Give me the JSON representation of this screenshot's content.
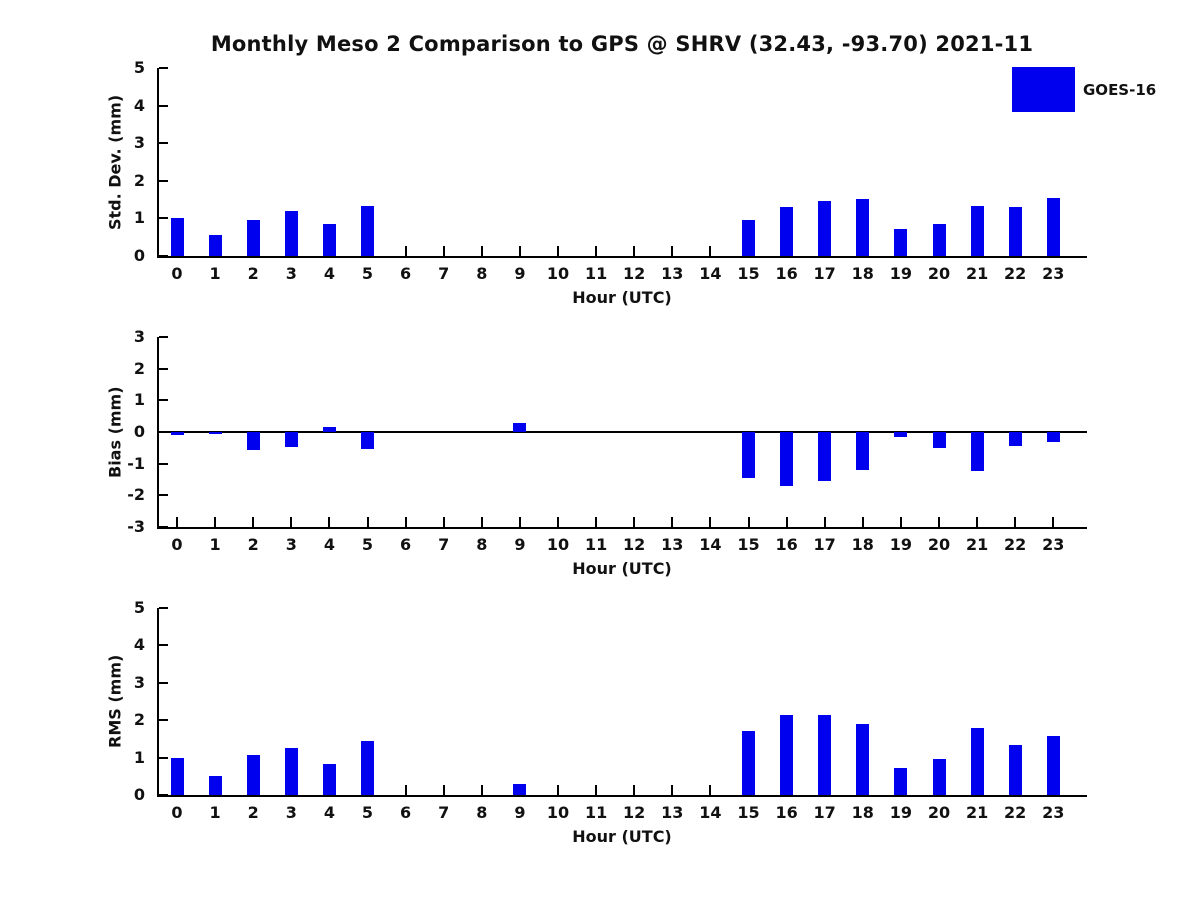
{
  "title": "Monthly Meso 2 Comparison to GPS @ SHRV (32.43, -93.70) 2021-11",
  "legend": {
    "label": "GOES-16",
    "color": "#0000EE"
  },
  "chart_data": [
    {
      "type": "bar",
      "title": "Monthly Meso 2 Comparison to GPS @ SHRV (32.43, -93.70) 2021-11",
      "series_name": "GOES-16",
      "categories": [
        "0",
        "1",
        "2",
        "3",
        "4",
        "5",
        "6",
        "7",
        "8",
        "9",
        "10",
        "11",
        "12",
        "13",
        "14",
        "15",
        "16",
        "17",
        "18",
        "19",
        "20",
        "21",
        "22",
        "23"
      ],
      "values": [
        1.0,
        0.55,
        0.95,
        1.2,
        0.85,
        1.34,
        0,
        0,
        0,
        0,
        0,
        0,
        0,
        0,
        0,
        0.95,
        1.31,
        1.47,
        1.51,
        0.71,
        0.84,
        1.32,
        1.29,
        1.54
      ],
      "xlabel": "Hour (UTC)",
      "ylabel": "Std. Dev. (mm)",
      "ylim": [
        0,
        5
      ],
      "yticks": [
        0,
        1,
        2,
        3,
        4,
        5
      ],
      "grid": "off",
      "legend_position": "top-right"
    },
    {
      "type": "bar",
      "series_name": "GOES-16",
      "categories": [
        "0",
        "1",
        "2",
        "3",
        "4",
        "5",
        "6",
        "7",
        "8",
        "9",
        "10",
        "11",
        "12",
        "13",
        "14",
        "15",
        "16",
        "17",
        "18",
        "19",
        "20",
        "21",
        "22",
        "23"
      ],
      "values": [
        -0.1,
        -0.05,
        -0.57,
        -0.47,
        0.15,
        -0.55,
        0,
        0,
        0,
        0.3,
        0,
        0,
        0,
        0,
        0,
        -1.45,
        -1.7,
        -1.55,
        -1.2,
        -0.15,
        -0.5,
        -1.22,
        -0.45,
        -0.33
      ],
      "xlabel": "Hour (UTC)",
      "ylabel": "Bias (mm)",
      "ylim": [
        -3,
        3
      ],
      "yticks": [
        -3,
        -2,
        -1,
        0,
        1,
        2,
        3
      ],
      "grid": "off"
    },
    {
      "type": "bar",
      "series_name": "GOES-16",
      "categories": [
        "0",
        "1",
        "2",
        "3",
        "4",
        "5",
        "6",
        "7",
        "8",
        "9",
        "10",
        "11",
        "12",
        "13",
        "14",
        "15",
        "16",
        "17",
        "18",
        "19",
        "20",
        "21",
        "22",
        "23"
      ],
      "values": [
        1.0,
        0.52,
        1.08,
        1.27,
        0.84,
        1.45,
        0,
        0,
        0,
        0.29,
        0,
        0,
        0,
        0,
        0,
        1.72,
        2.15,
        2.15,
        1.9,
        0.72,
        0.95,
        1.8,
        1.35,
        1.57
      ],
      "xlabel": "Hour (UTC)",
      "ylabel": "RMS (mm)",
      "ylim": [
        0,
        5
      ],
      "yticks": [
        0,
        1,
        2,
        3,
        4,
        5
      ],
      "grid": "off"
    }
  ]
}
